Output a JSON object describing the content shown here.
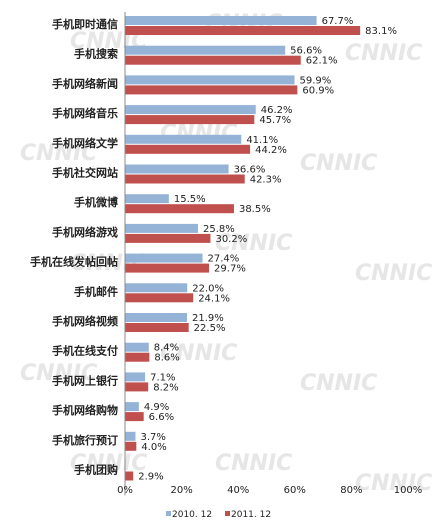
{
  "chart_data": {
    "type": "bar",
    "orientation": "horizontal",
    "watermark": "CNNIC",
    "categories": [
      "手机即时通信",
      "手机搜索",
      "手机网络新闻",
      "手机网络音乐",
      "手机网络文学",
      "手机社交网站",
      "手机微博",
      "手机网络游戏",
      "手机在线发帖回帖",
      "手机邮件",
      "手机网络视频",
      "手机在线支付",
      "手机网上银行",
      "手机网络购物",
      "手机旅行预订",
      "手机团购"
    ],
    "series": [
      {
        "name": "2010. 12",
        "color": "#95b3d7",
        "values": [
          67.7,
          56.6,
          59.9,
          46.2,
          41.1,
          36.6,
          15.5,
          25.8,
          27.4,
          22.0,
          21.9,
          8.4,
          7.1,
          4.9,
          3.7,
          null
        ],
        "labels": [
          "67.7%",
          "56.6%",
          "59.9%",
          "46.2%",
          "41.1%",
          "36.6%",
          "15.5%",
          "25.8%",
          "27.4%",
          "22.0%",
          "21.9%",
          "8.4%",
          "7.1%",
          "4.9%",
          "3.7%",
          ""
        ]
      },
      {
        "name": "2011. 12",
        "color": "#c0504d",
        "values": [
          83.1,
          62.1,
          60.9,
          45.7,
          44.2,
          42.3,
          38.5,
          30.2,
          29.7,
          24.1,
          22.5,
          8.6,
          8.2,
          6.6,
          4.0,
          2.9
        ],
        "labels": [
          "83.1%",
          "62.1%",
          "60.9%",
          "45.7%",
          "44.2%",
          "42.3%",
          "38.5%",
          "30.2%",
          "29.7%",
          "24.1%",
          "22.5%",
          "8.6%",
          "8.2%",
          "6.6%",
          "4.0%",
          "2.9%"
        ]
      }
    ],
    "xlim": [
      0,
      100
    ],
    "xticks": [
      "0%",
      "20%",
      "40%",
      "60%",
      "80%",
      "100%"
    ],
    "grid": false,
    "legend_position": "bottom"
  }
}
